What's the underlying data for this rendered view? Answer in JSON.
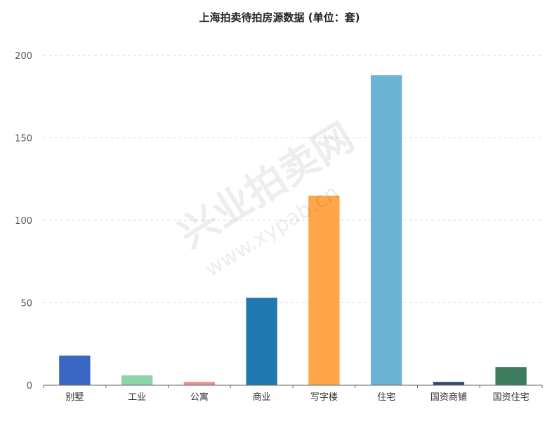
{
  "chart_data": {
    "type": "bar",
    "title": "上海拍卖待拍房源数据 (单位：套)",
    "categories": [
      "别墅",
      "工业",
      "公寓",
      "商业",
      "写字楼",
      "住宅",
      "国资商铺",
      "国资住宅"
    ],
    "values": [
      18,
      6,
      2,
      53,
      115,
      188,
      2,
      11
    ],
    "colors": [
      "#3a66c4",
      "#8fd1a8",
      "#f08c8c",
      "#1f78b0",
      "#ffa54a",
      "#6ab4d6",
      "#2d4a6e",
      "#3e7c5e"
    ],
    "ylim": [
      0,
      200
    ],
    "yticks": [
      0,
      50,
      100,
      150,
      200
    ],
    "grid": true,
    "grid_style": "dashed",
    "xlabel": "",
    "ylabel": ""
  },
  "watermark": {
    "text": "兴业拍卖网",
    "url": "www.xypab.cn"
  }
}
